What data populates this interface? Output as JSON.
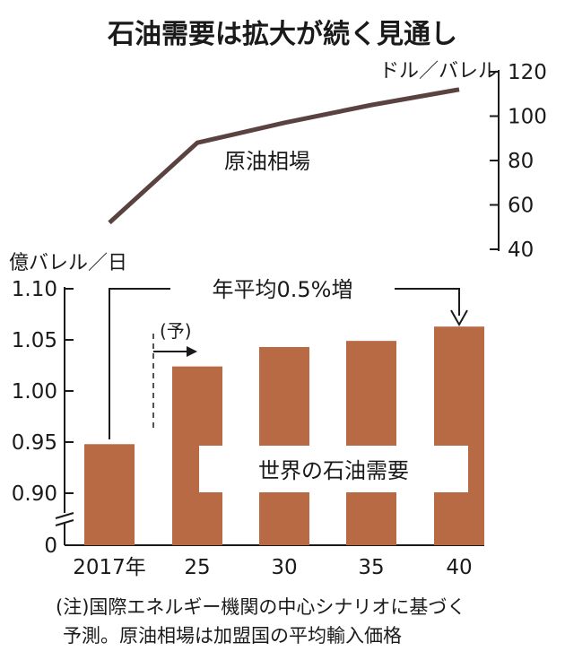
{
  "title": "石油需要は拡大が続く見通し",
  "note_lines": [
    "(注)国際エネルギー機関の中心シナリオに基づく",
    "予測。原油相場は加盟国の平均輸入価格"
  ],
  "colors": {
    "bar": "#b86a45",
    "line": "#5a4240",
    "text": "#1a1a1a"
  },
  "chart_data": [
    {
      "type": "bar",
      "categories": [
        "2017年",
        "25",
        "30",
        "35",
        "40"
      ],
      "values": [
        0.948,
        1.024,
        1.043,
        1.049,
        1.063
      ],
      "ylabel": "億バレル／日",
      "ylim": [
        0,
        1.1
      ],
      "yticks": [
        "1.10",
        "1.05",
        "1.00",
        "0.95",
        "0.90",
        "0"
      ],
      "axis_break": true,
      "series_label": "世界の石油需要",
      "forecast_marker": {
        "label": "(予)",
        "from_category": "25"
      },
      "annotation": {
        "text": "年平均0.5%増",
        "from_category": "2017年",
        "to_category": "40"
      }
    },
    {
      "type": "line",
      "x": [
        "2017年",
        "25",
        "30",
        "35",
        "40"
      ],
      "values": [
        52,
        88,
        97,
        105,
        112
      ],
      "ylabel": "ドル／バレル",
      "ylim": [
        40,
        120
      ],
      "yticks": [
        "120",
        "100",
        "80",
        "60",
        "40"
      ],
      "series_label": "原油相場",
      "y_axis_side": "right"
    }
  ]
}
